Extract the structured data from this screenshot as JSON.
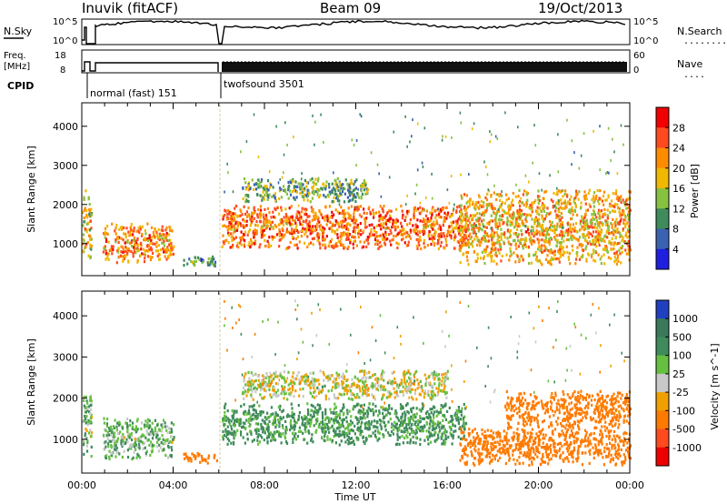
{
  "header": {
    "station": "Inuvik (fitACF)",
    "beam": "Beam 09",
    "date": "19/Oct/2013"
  },
  "top_panels": {
    "nsky": {
      "left_label": "N.Sky",
      "left_ticks": [
        "10^5",
        "10^0"
      ],
      "right_label": "N.Search",
      "right_ticks": [
        "10^5",
        "10^0"
      ],
      "right_legend": "........"
    },
    "freq": {
      "left_label_1": "Freq.",
      "left_label_2": "[MHz]",
      "left_ticks": [
        "18",
        "8"
      ],
      "right_label": "Nave",
      "right_ticks": [
        "60",
        "0"
      ],
      "right_legend": "...."
    },
    "cpid": {
      "label": "CPID",
      "modes": [
        {
          "name": "normal (fast) 151",
          "start_hour": 0.85,
          "end_hour": 6.0
        },
        {
          "name": "twofsound 3501",
          "start_hour": 6.0,
          "end_hour": 24.0
        }
      ]
    }
  },
  "axes": {
    "x_label": "Time UT",
    "x_ticks": [
      "00:00",
      "04:00",
      "08:00",
      "12:00",
      "16:00",
      "20:00",
      "00:00"
    ],
    "y_label": "Slant Range [km]",
    "y_ticks": [
      "1000",
      "2000",
      "3000",
      "4000"
    ]
  },
  "colorbars": {
    "power": {
      "label": "Power [dB]",
      "ticks": [
        "4",
        "8",
        "12",
        "16",
        "20",
        "24",
        "28"
      ],
      "colors": [
        "#1f1fe0",
        "#3a62b0",
        "#3f8b5c",
        "#86c23f",
        "#f0b800",
        "#ff8c00",
        "#ff4a1f",
        "#f00000"
      ]
    },
    "velocity": {
      "label": "Velocity [m s^-1]",
      "ticks": [
        "1000",
        "500",
        "100",
        "25",
        "-25",
        "-100",
        "-500",
        "-1000"
      ],
      "colors": [
        "#2040c0",
        "#3a7a5a",
        "#3f8b5c",
        "#66c040",
        "#c8c8c8",
        "#f0a000",
        "#ff7a00",
        "#ff4a1f",
        "#ee0000"
      ]
    }
  },
  "chart_data": [
    {
      "type": "heatmap",
      "title": "Power",
      "xlabel": "Time UT",
      "ylabel": "Slant Range [km]",
      "xlim": [
        0,
        24
      ],
      "ylim": [
        180,
        4600
      ],
      "x_unit": "hour UT",
      "colorbar": "Power [dB]",
      "colorbar_range": [
        4,
        28
      ],
      "regions": [
        {
          "t_start": 0.9,
          "t_end": 4.0,
          "r_min": 550,
          "r_max": 1550,
          "value_db": 22
        },
        {
          "t_start": 0.0,
          "t_end": 0.4,
          "r_min": 600,
          "r_max": 2400,
          "value_db": 18
        },
        {
          "t_start": 4.4,
          "t_end": 5.9,
          "r_min": 450,
          "r_max": 700,
          "value_db": 10
        },
        {
          "t_start": 6.1,
          "t_end": 16.8,
          "r_min": 900,
          "r_max": 2000,
          "value_db": 24
        },
        {
          "t_start": 7.0,
          "t_end": 12.5,
          "r_min": 2100,
          "r_max": 2700,
          "value_db": 12
        },
        {
          "t_start": 16.5,
          "t_end": 24.0,
          "r_min": 500,
          "r_max": 2400,
          "value_db": 20
        }
      ]
    },
    {
      "type": "heatmap",
      "title": "Velocity",
      "xlabel": "Time UT",
      "ylabel": "Slant Range [km]",
      "xlim": [
        0,
        24
      ],
      "ylim": [
        180,
        4600
      ],
      "x_unit": "hour UT",
      "colorbar": "Velocity [m s^-1]",
      "colorbar_range": [
        -1000,
        1000
      ],
      "regions": [
        {
          "t_start": 0.9,
          "t_end": 4.0,
          "r_min": 550,
          "r_max": 1550,
          "value_ms": 80
        },
        {
          "t_start": 0.0,
          "t_end": 0.4,
          "r_min": 600,
          "r_max": 2200,
          "value_ms": 60
        },
        {
          "t_start": 4.4,
          "t_end": 5.9,
          "r_min": 450,
          "r_max": 700,
          "value_ms": -200
        },
        {
          "t_start": 6.1,
          "t_end": 16.8,
          "r_min": 900,
          "r_max": 1900,
          "value_ms": 150
        },
        {
          "t_start": 7.0,
          "t_end": 16.0,
          "r_min": 2000,
          "r_max": 2700,
          "value_ms": 0
        },
        {
          "t_start": 16.5,
          "t_end": 24.0,
          "r_min": 400,
          "r_max": 1300,
          "value_ms": -300
        },
        {
          "t_start": 18.5,
          "t_end": 24.0,
          "r_min": 1300,
          "r_max": 2200,
          "value_ms": -200
        }
      ]
    }
  ]
}
